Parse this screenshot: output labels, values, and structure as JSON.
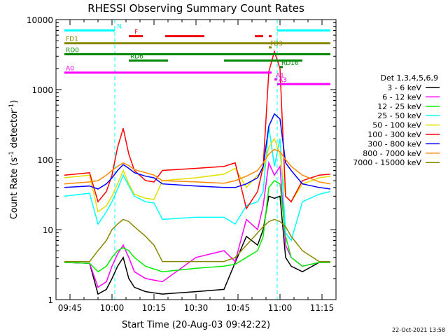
{
  "chart_data": {
    "type": "line",
    "title": "RHESSI Observing Summary Count Rates",
    "xlabel": "Start Time (20-Aug-03 09:42:22)",
    "ylabel": "Count Rate (s",
    "ylabel_sup": "-1",
    "ylabel_tail": " detector",
    "ylabel_end": ")",
    "y_scale": "log",
    "ylim": [
      1,
      10000
    ],
    "xlim": [
      "09:40",
      "11:20"
    ],
    "x_ticks": [
      "09:45",
      "10:00",
      "10:15",
      "10:30",
      "10:45",
      "11:00",
      "11:15"
    ],
    "y_ticks": [
      "1",
      "10",
      "100",
      "1000",
      "10000"
    ],
    "legend_title": "Det 1,3,4,5,6,9",
    "legend_position": "right",
    "footer": "22-Oct-2021 13:58",
    "series": [
      {
        "name": "3 - 6 keV",
        "color": "#000000",
        "x": [
          "09:43",
          "09:52",
          "09:55",
          "09:58",
          "10:00",
          "10:02",
          "10:04",
          "10:06",
          "10:08",
          "10:12",
          "10:18",
          "10:30",
          "10:40",
          "10:44",
          "10:48",
          "10:52",
          "10:54",
          "10:56",
          "10:58",
          "11:00",
          "11:02",
          "11:04",
          "11:08",
          "11:14",
          "11:18"
        ],
        "y": [
          3.4,
          3.3,
          1.2,
          1.4,
          2,
          3,
          4,
          2,
          1.5,
          1.3,
          1.2,
          1.3,
          1.4,
          3.4,
          8,
          6,
          10,
          30,
          28,
          30,
          4,
          3,
          2.5,
          3.4,
          3.4
        ]
      },
      {
        "name": "6 - 12 keV",
        "color": "#ff00ff",
        "x": [
          "09:43",
          "09:52",
          "09:55",
          "09:58",
          "10:00",
          "10:02",
          "10:04",
          "10:06",
          "10:08",
          "10:12",
          "10:18",
          "10:30",
          "10:40",
          "10:44",
          "10:48",
          "10:52",
          "10:54",
          "10:56",
          "10:58",
          "11:00",
          "11:02",
          "11:04",
          "11:08",
          "11:14",
          "11:18"
        ],
        "y": [
          3.4,
          3.3,
          1.5,
          1.8,
          3,
          4.5,
          6,
          4,
          2.5,
          2,
          1.8,
          4,
          5,
          3.5,
          14,
          10,
          22,
          90,
          60,
          80,
          6,
          4,
          3,
          3.4,
          3.4
        ]
      },
      {
        "name": "12 - 25 keV",
        "color": "#00ee00",
        "x": [
          "09:43",
          "09:52",
          "09:55",
          "09:58",
          "10:00",
          "10:02",
          "10:04",
          "10:06",
          "10:08",
          "10:12",
          "10:18",
          "10:30",
          "10:40",
          "10:44",
          "10:48",
          "10:52",
          "10:54",
          "10:56",
          "10:58",
          "11:00",
          "11:02",
          "11:04",
          "11:08",
          "11:14",
          "11:18"
        ],
        "y": [
          3.4,
          3.3,
          2.5,
          3,
          4,
          5,
          5.5,
          5,
          4,
          3,
          2.5,
          2.8,
          3,
          3.2,
          4,
          5,
          8,
          40,
          50,
          45,
          8,
          4,
          3,
          3.4,
          3.4
        ]
      },
      {
        "name": "25 - 50 keV",
        "color": "#00ffff",
        "x": [
          "09:43",
          "09:52",
          "09:55",
          "09:58",
          "10:00",
          "10:02",
          "10:04",
          "10:06",
          "10:08",
          "10:12",
          "10:15",
          "10:18",
          "10:30",
          "10:40",
          "10:44",
          "10:48",
          "10:52",
          "10:54",
          "10:56",
          "10:58",
          "11:00",
          "11:02",
          "11:04",
          "11:08",
          "11:14",
          "11:18"
        ],
        "y": [
          30,
          33,
          12,
          18,
          25,
          38,
          60,
          42,
          30,
          25,
          24,
          14,
          15,
          15,
          12,
          22,
          25,
          35,
          300,
          80,
          200,
          9,
          7,
          25,
          32,
          35
        ]
      },
      {
        "name": "50 - 100 keV",
        "color": "#e0e000",
        "x": [
          "09:43",
          "09:52",
          "09:55",
          "09:58",
          "10:00",
          "10:02",
          "10:04",
          "10:06",
          "10:08",
          "10:12",
          "10:15",
          "10:18",
          "10:30",
          "10:40",
          "10:44",
          "10:48",
          "10:52",
          "10:54",
          "10:56",
          "10:58",
          "11:00",
          "11:02",
          "11:04",
          "11:08",
          "11:14",
          "11:18"
        ],
        "y": [
          55,
          60,
          18,
          22,
          30,
          45,
          70,
          45,
          32,
          28,
          27,
          50,
          55,
          62,
          75,
          40,
          60,
          70,
          150,
          200,
          120,
          30,
          25,
          45,
          55,
          58
        ]
      },
      {
        "name": "100 - 300 keV",
        "color": "#ff0000",
        "x": [
          "09:43",
          "09:52",
          "09:55",
          "09:58",
          "10:00",
          "10:02",
          "10:04",
          "10:06",
          "10:08",
          "10:12",
          "10:15",
          "10:18",
          "10:30",
          "10:40",
          "10:44",
          "10:48",
          "10:52",
          "10:54",
          "10:56",
          "10:58",
          "11:00",
          "11:02",
          "11:04",
          "11:08",
          "11:14",
          "11:18"
        ],
        "y": [
          60,
          65,
          25,
          35,
          60,
          150,
          280,
          120,
          70,
          50,
          48,
          70,
          75,
          80,
          90,
          20,
          35,
          80,
          1800,
          3500,
          2000,
          30,
          25,
          50,
          60,
          62
        ]
      },
      {
        "name": "300 - 800 keV",
        "color": "#0000ff",
        "x": [
          "09:43",
          "09:52",
          "09:55",
          "09:58",
          "10:00",
          "10:02",
          "10:04",
          "10:06",
          "10:08",
          "10:12",
          "10:15",
          "10:18",
          "10:30",
          "10:40",
          "10:44",
          "10:48",
          "10:52",
          "10:54",
          "10:56",
          "10:58",
          "11:00",
          "11:02",
          "11:04",
          "11:08",
          "11:14",
          "11:18"
        ],
        "y": [
          40,
          42,
          38,
          45,
          55,
          70,
          85,
          75,
          65,
          58,
          55,
          45,
          42,
          40,
          40,
          45,
          55,
          80,
          300,
          450,
          380,
          90,
          70,
          45,
          40,
          38
        ]
      },
      {
        "name": "800 - 7000 keV",
        "color": "#ff8800",
        "x": [
          "09:43",
          "09:52",
          "09:55",
          "09:58",
          "10:00",
          "10:02",
          "10:04",
          "10:06",
          "10:08",
          "10:12",
          "10:15",
          "10:18",
          "10:30",
          "10:40",
          "10:44",
          "10:48",
          "10:52",
          "10:54",
          "10:56",
          "10:58",
          "11:00",
          "11:02",
          "11:04",
          "11:08",
          "11:14",
          "11:18"
        ],
        "y": [
          45,
          48,
          50,
          60,
          70,
          80,
          90,
          82,
          72,
          65,
          60,
          50,
          48,
          46,
          50,
          58,
          70,
          90,
          120,
          140,
          130,
          100,
          80,
          60,
          48,
          45
        ]
      },
      {
        "name": "7000 - 15000 keV",
        "color": "#888800",
        "x": [
          "09:43",
          "09:52",
          "09:55",
          "09:58",
          "10:00",
          "10:02",
          "10:04",
          "10:06",
          "10:08",
          "10:12",
          "10:15",
          "10:18",
          "10:30",
          "10:40",
          "10:44",
          "10:48",
          "10:52",
          "10:54",
          "10:56",
          "10:58",
          "11:00",
          "11:02",
          "11:04",
          "11:08",
          "11:14",
          "11:18"
        ],
        "y": [
          3.5,
          3.5,
          5,
          7,
          10,
          12,
          14,
          13,
          11,
          8,
          6,
          3.5,
          3.5,
          3.5,
          4,
          6,
          9,
          11,
          13,
          14,
          13,
          11,
          8,
          5,
          3.5,
          3.5
        ]
      }
    ],
    "flag_bars": [
      {
        "label": "N",
        "color": "#00ffff",
        "segments": [
          [
            "09:43",
            "10:01"
          ],
          [
            "10:59",
            "11:18"
          ]
        ],
        "y": 7000
      },
      {
        "label": "F",
        "color": "#ee0000",
        "segments": [
          [
            "10:06",
            "10:11"
          ],
          [
            "10:19",
            "10:33"
          ],
          [
            "10:51",
            "10:54"
          ],
          [
            "10:56",
            "10:57"
          ]
        ],
        "y": 5800
      },
      {
        "label": "FD1",
        "color": "#888800",
        "segments": [
          [
            "09:43",
            "11:18"
          ]
        ],
        "y": 4600
      },
      {
        "label": "FD3",
        "color": "#888800",
        "segments": [
          [
            "10:56",
            "10:57"
          ]
        ],
        "y": 4000
      },
      {
        "label": "RD0",
        "color": "#008800",
        "segments": [
          [
            "09:43",
            "10:17"
          ],
          [
            "10:17",
            "11:18"
          ]
        ],
        "y": 3200
      },
      {
        "label": "RD6",
        "color": "#008800",
        "segments": [
          [
            "10:06",
            "10:20"
          ],
          [
            "10:40",
            "11:08"
          ]
        ],
        "y": 2600
      },
      {
        "label": "RD16",
        "color": "#008800",
        "segments": [
          [
            "11:00",
            "11:01"
          ]
        ],
        "y": 2100
      },
      {
        "label": "A0",
        "color": "#ff00ff",
        "segments": [
          [
            "09:43",
            "10:57"
          ]
        ],
        "y": 1750
      },
      {
        "label": "A1",
        "color": "#ff00ff",
        "segments": [
          [
            "10:58",
            "10:59"
          ]
        ],
        "y": 1400
      },
      {
        "label": "A3",
        "color": "#ff00ff",
        "segments": [
          [
            "10:59",
            "11:18"
          ]
        ],
        "y": 1200
      }
    ],
    "dashed_lines": [
      {
        "color": "#00ffff",
        "x": "10:01"
      },
      {
        "color": "#00ffff",
        "x": "10:59"
      }
    ]
  }
}
